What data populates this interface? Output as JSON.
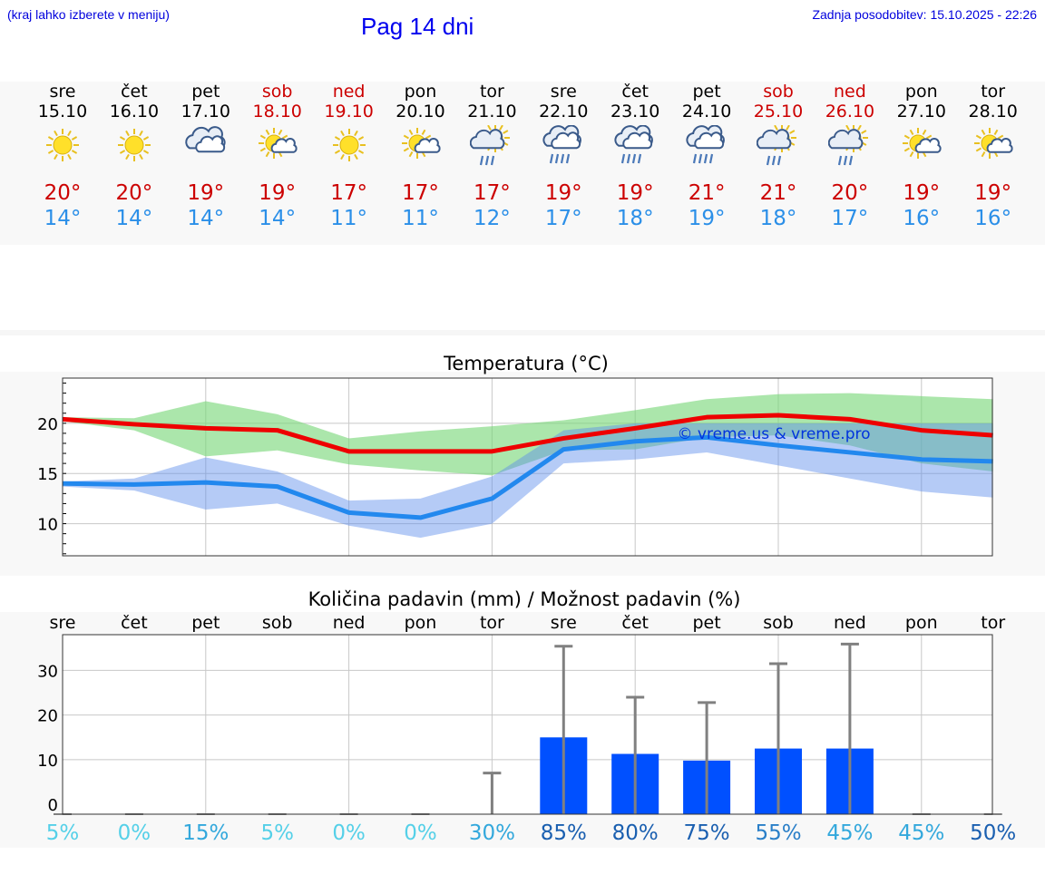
{
  "header": {
    "hint": "(kraj lahko izberete v meniju)",
    "title": "Pag 14 dni",
    "updated": "Zadnja posodobitev: 15.10.2025 - 22:26"
  },
  "colors": {
    "max": "#cc0000",
    "min": "#2b8fe8",
    "weekend": "#cc0000",
    "bar": "#0050ff"
  },
  "days": [
    {
      "name": "sre",
      "date": "15.10",
      "icon": "sun-icon",
      "max": "20°",
      "min": "14°",
      "weekend": false
    },
    {
      "name": "čet",
      "date": "16.10",
      "icon": "sun-icon",
      "max": "20°",
      "min": "14°",
      "weekend": false
    },
    {
      "name": "pet",
      "date": "17.10",
      "icon": "cloud-icon",
      "max": "19°",
      "min": "14°",
      "weekend": false
    },
    {
      "name": "sob",
      "date": "18.10",
      "icon": "sun-cloud-icon",
      "max": "19°",
      "min": "14°",
      "weekend": true
    },
    {
      "name": "ned",
      "date": "19.10",
      "icon": "sun-icon",
      "max": "17°",
      "min": "11°",
      "weekend": true
    },
    {
      "name": "pon",
      "date": "20.10",
      "icon": "sun-cloud-icon",
      "max": "17°",
      "min": "11°",
      "weekend": false
    },
    {
      "name": "tor",
      "date": "21.10",
      "icon": "sun-cloud-rain-icon",
      "max": "17°",
      "min": "12°",
      "weekend": false
    },
    {
      "name": "sre",
      "date": "22.10",
      "icon": "cloud-rain-icon",
      "max": "19°",
      "min": "17°",
      "weekend": false
    },
    {
      "name": "čet",
      "date": "23.10",
      "icon": "cloud-rain-icon",
      "max": "19°",
      "min": "18°",
      "weekend": false
    },
    {
      "name": "pet",
      "date": "24.10",
      "icon": "cloud-rain-icon",
      "max": "21°",
      "min": "19°",
      "weekend": false
    },
    {
      "name": "sob",
      "date": "25.10",
      "icon": "sun-cloud-rain-icon",
      "max": "21°",
      "min": "18°",
      "weekend": true
    },
    {
      "name": "ned",
      "date": "26.10",
      "icon": "sun-cloud-rain-icon",
      "max": "20°",
      "min": "17°",
      "weekend": true
    },
    {
      "name": "pon",
      "date": "27.10",
      "icon": "sun-cloud-icon",
      "max": "19°",
      "min": "16°",
      "weekend": false
    },
    {
      "name": "tor",
      "date": "28.10",
      "icon": "sun-cloud-icon",
      "max": "19°",
      "min": "16°",
      "weekend": false
    }
  ],
  "chart_data": [
    {
      "type": "line",
      "title": "Temperatura (°C)",
      "watermark": "© vreme.us & vreme.pro",
      "yticks": [
        10,
        15,
        20
      ],
      "ylim": [
        6.8,
        24.5
      ],
      "x": [
        0,
        1,
        2,
        3,
        4,
        5,
        6,
        7,
        8,
        9,
        10,
        11,
        12,
        13
      ],
      "series": [
        {
          "role": "max",
          "values": [
            20.4,
            19.9,
            19.5,
            19.3,
            17.2,
            17.2,
            17.2,
            18.5,
            19.5,
            20.6,
            20.8,
            20.4,
            19.3,
            18.8
          ]
        },
        {
          "role": "min",
          "values": [
            14.0,
            13.9,
            14.1,
            13.7,
            11.1,
            10.6,
            12.5,
            17.4,
            18.2,
            18.6,
            17.8,
            17.1,
            16.4,
            16.2
          ]
        }
      ],
      "bands": [
        {
          "role": "max-range",
          "upper": [
            20.6,
            20.5,
            22.2,
            20.9,
            18.5,
            19.2,
            19.7,
            20.3,
            21.3,
            22.4,
            22.9,
            23.0,
            22.7,
            22.4
          ],
          "lower": [
            20.2,
            19.3,
            16.7,
            17.3,
            15.9,
            15.3,
            14.8,
            17.3,
            17.4,
            18.6,
            18.8,
            17.8,
            16.0,
            15.2
          ]
        },
        {
          "role": "min-range",
          "upper": [
            14.2,
            14.5,
            16.6,
            15.2,
            12.3,
            12.5,
            14.7,
            19.3,
            20.0,
            20.0,
            20.0,
            20.0,
            20.0,
            20.0
          ],
          "lower": [
            13.7,
            13.3,
            11.4,
            12.0,
            9.8,
            8.6,
            10.0,
            16.0,
            16.4,
            17.1,
            15.8,
            14.5,
            13.2,
            12.6
          ]
        }
      ],
      "grid": true
    },
    {
      "type": "bar",
      "title": "Količina padavin (mm) / Možnost padavin (%)",
      "categories": [
        "sre",
        "čet",
        "pet",
        "sob",
        "ned",
        "pon",
        "tor",
        "sre",
        "čet",
        "pet",
        "sob",
        "ned",
        "pon",
        "tor"
      ],
      "values": [
        0,
        0,
        0,
        0,
        0,
        0,
        0,
        15,
        11.3,
        9.8,
        12.5,
        12.5,
        0,
        0
      ],
      "error_max": [
        0,
        0,
        0,
        0,
        0,
        0,
        7,
        35.4,
        24,
        22.8,
        31.5,
        35.9,
        0,
        0
      ],
      "probabilities": [
        "5%",
        "0%",
        "15%",
        "5%",
        "0%",
        "0%",
        "30%",
        "85%",
        "80%",
        "75%",
        "55%",
        "45%",
        "45%",
        "50%"
      ],
      "prob_colors": [
        "#55d0e8",
        "#55d0e8",
        "#33a8dc",
        "#55d0e8",
        "#55d0e8",
        "#55d0e8",
        "#33a8dc",
        "#1a5fb0",
        "#1a5fb0",
        "#1a5fb0",
        "#2a7fc8",
        "#33a8dc",
        "#33a8dc",
        "#1a5fb0"
      ],
      "yticks": [
        0,
        10,
        20,
        30
      ],
      "ylim": [
        -2.2,
        38
      ],
      "grid": true
    }
  ]
}
